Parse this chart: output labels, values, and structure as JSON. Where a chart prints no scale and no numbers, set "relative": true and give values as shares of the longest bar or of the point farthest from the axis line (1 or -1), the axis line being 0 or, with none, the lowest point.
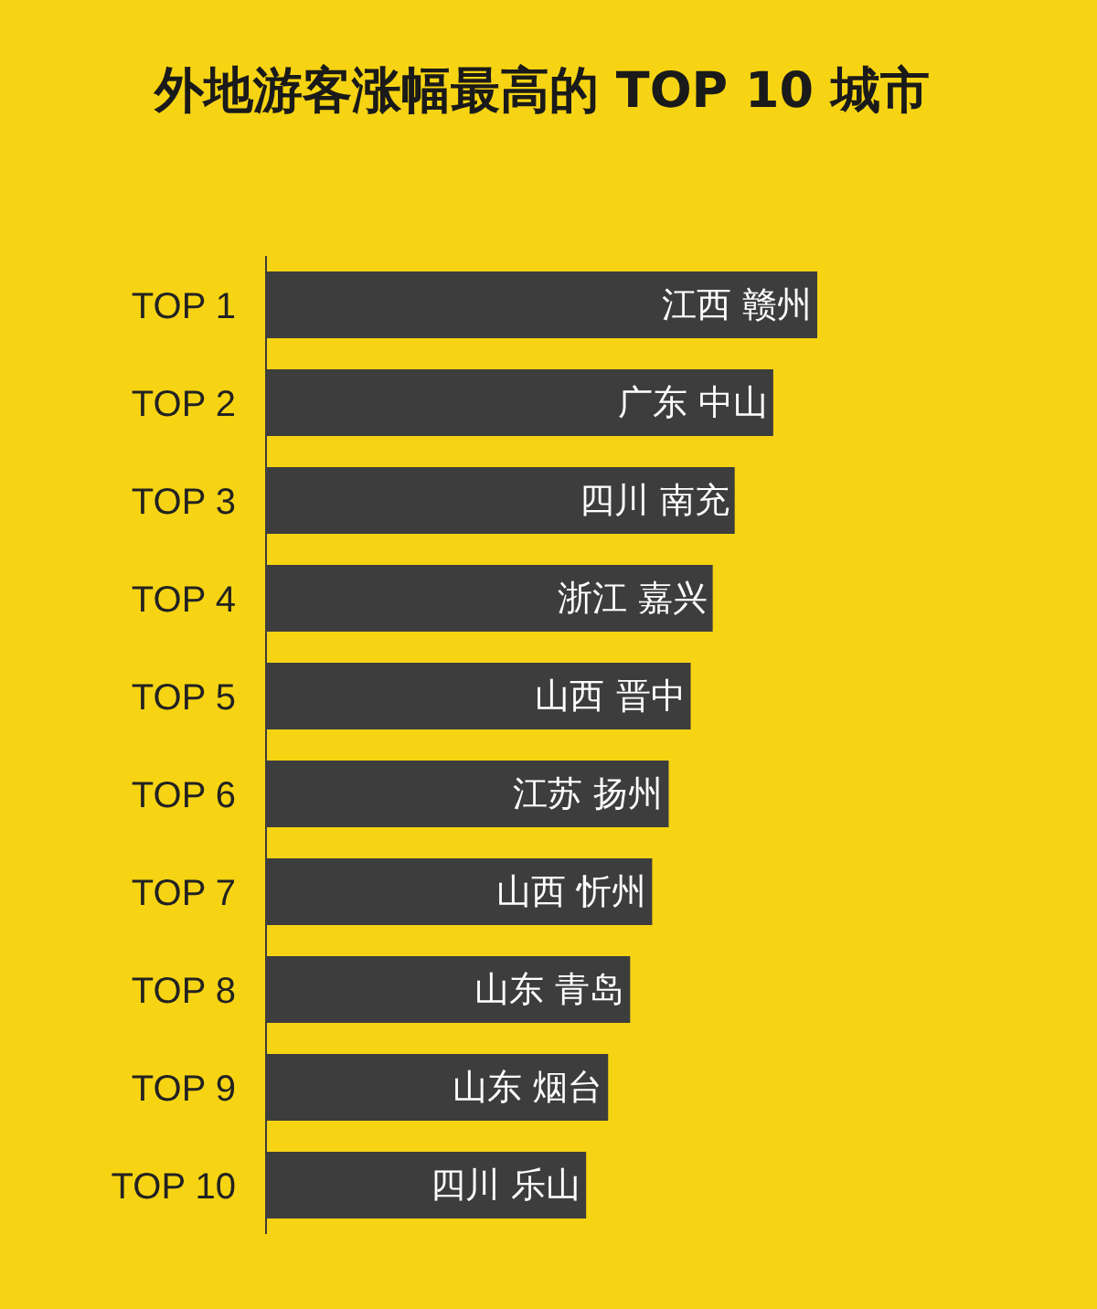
{
  "chart_data": {
    "type": "bar",
    "orientation": "horizontal",
    "relative": true,
    "title": "外地游客涨幅最高的 TOP 10 城市",
    "categories": [
      "TOP 1",
      "TOP 2",
      "TOP 3",
      "TOP 4",
      "TOP 5",
      "TOP 6",
      "TOP 7",
      "TOP 8",
      "TOP 9",
      "TOP 10"
    ],
    "values": [
      1,
      0.92,
      0.85,
      0.81,
      0.77,
      0.73,
      0.7,
      0.66,
      0.62,
      0.58
    ],
    "annotations": [
      "江西 赣州",
      "广东 中山",
      "四川 南充",
      "浙江 嘉兴",
      "山西 晋中",
      "江苏 扬州",
      "山西 忻州",
      "山东 青岛",
      "山东 烟台",
      "四川 乐山"
    ],
    "color": "#3d3d3d"
  }
}
